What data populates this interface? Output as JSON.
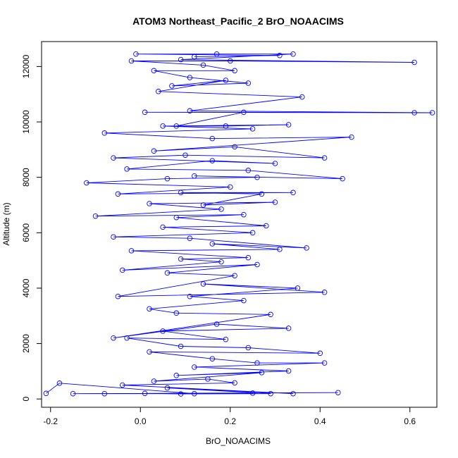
{
  "chart_data": {
    "type": "line",
    "title": "ATOM3 Northeast_Pacific_2 BrO_NOAACIMS",
    "xlabel": "BrO_NOAACIMS",
    "ylabel": "Altitude (m)",
    "xlim": [
      -0.22,
      0.66
    ],
    "ylim": [
      -300,
      12900
    ],
    "xticks": [
      -0.2,
      0.0,
      0.2,
      0.4,
      0.6
    ],
    "xtick_labels": [
      "-0.2",
      "0.0",
      "0.2",
      "0.4",
      "0.6"
    ],
    "yticks": [
      0,
      2000,
      4000,
      6000,
      8000,
      10000,
      12000
    ],
    "ytick_labels": [
      "0",
      "2000",
      "4000",
      "6000",
      "8000",
      "10000",
      "12000"
    ],
    "grid": false,
    "legend": "none",
    "series_color": "#0000ff",
    "marker": "open-circle",
    "series": [
      {
        "points": [
          [
            -0.21,
            200
          ],
          [
            -0.18,
            570
          ],
          [
            0.12,
            190
          ],
          [
            -0.15,
            190
          ],
          [
            0.25,
            210
          ],
          [
            -0.08,
            190
          ],
          [
            0.44,
            230
          ],
          [
            0.01,
            200
          ],
          [
            0.09,
            180
          ],
          [
            0.29,
            190
          ],
          [
            0.06,
            400
          ],
          [
            0.34,
            190
          ],
          [
            -0.04,
            500
          ],
          [
            0.21,
            580
          ],
          [
            0.15,
            720
          ],
          [
            0.03,
            640
          ],
          [
            0.27,
            950
          ],
          [
            0.08,
            850
          ],
          [
            0.33,
            1010
          ],
          [
            0.12,
            1150
          ],
          [
            0.41,
            1300
          ],
          [
            0.26,
            1300
          ],
          [
            0.16,
            1450
          ],
          [
            0.02,
            1700
          ],
          [
            0.4,
            1650
          ],
          [
            0.24,
            1850
          ],
          [
            0.09,
            1900
          ],
          [
            -0.03,
            2200
          ],
          [
            0.19,
            2150
          ],
          [
            0.05,
            2450
          ],
          [
            0.33,
            2550
          ],
          [
            0.17,
            2700
          ],
          [
            -0.06,
            2200
          ],
          [
            0.29,
            3050
          ],
          [
            0.08,
            3100
          ],
          [
            0.02,
            3250
          ],
          [
            0.23,
            3550
          ],
          [
            0.11,
            3700
          ],
          [
            0.35,
            4000
          ],
          [
            0.14,
            4150
          ],
          [
            0.41,
            3850
          ],
          [
            -0.05,
            3700
          ],
          [
            0.21,
            4450
          ],
          [
            0.06,
            4550
          ],
          [
            0.26,
            4850
          ],
          [
            -0.04,
            4650
          ],
          [
            0.18,
            4950
          ],
          [
            0.09,
            5050
          ],
          [
            0.24,
            5100
          ],
          [
            -0.02,
            5350
          ],
          [
            0.31,
            5400
          ],
          [
            0.16,
            5600
          ],
          [
            0.37,
            5450
          ],
          [
            0.11,
            5800
          ],
          [
            -0.06,
            5850
          ],
          [
            0.25,
            6000
          ],
          [
            0.05,
            6200
          ],
          [
            0.28,
            6250
          ],
          [
            0.08,
            6550
          ],
          [
            0.23,
            6650
          ],
          [
            -0.1,
            6600
          ],
          [
            0.18,
            6850
          ],
          [
            0.02,
            7050
          ],
          [
            0.3,
            7100
          ],
          [
            0.14,
            7000
          ],
          [
            0.27,
            7400
          ],
          [
            0.09,
            7450
          ],
          [
            0.34,
            7450
          ],
          [
            -0.05,
            7400
          ],
          [
            0.2,
            7650
          ],
          [
            -0.12,
            7800
          ],
          [
            0.06,
            7950
          ],
          [
            0.26,
            8000
          ],
          [
            0.12,
            8050
          ],
          [
            0.45,
            7950
          ],
          [
            0.24,
            8250
          ],
          [
            -0.03,
            8300
          ],
          [
            0.16,
            8600
          ],
          [
            0.3,
            8500
          ],
          [
            -0.06,
            8700
          ],
          [
            0.1,
            8800
          ],
          [
            0.41,
            8700
          ],
          [
            0.21,
            9100
          ],
          [
            0.03,
            8950
          ],
          [
            0.47,
            9450
          ],
          [
            0.16,
            9400
          ],
          [
            -0.08,
            9600
          ],
          [
            0.25,
            9750
          ],
          [
            0.05,
            9850
          ],
          [
            0.33,
            9900
          ],
          [
            0.19,
            9850
          ],
          [
            0.08,
            9850
          ],
          [
            0.23,
            10350
          ],
          [
            0.61,
            10330
          ],
          [
            0.01,
            10350
          ],
          [
            0.65,
            10330
          ],
          [
            0.11,
            10400
          ],
          [
            0.36,
            10900
          ],
          [
            0.04,
            11100
          ],
          [
            0.19,
            11500
          ],
          [
            0.07,
            11300
          ],
          [
            0.24,
            11400
          ],
          [
            0.11,
            11600
          ],
          [
            0.03,
            11850
          ],
          [
            0.21,
            11850
          ],
          [
            0.14,
            12050
          ],
          [
            -0.02,
            12200
          ],
          [
            0.2,
            12200
          ],
          [
            0.61,
            12150
          ],
          [
            0.09,
            12250
          ],
          [
            0.34,
            12450
          ],
          [
            0.17,
            12450
          ],
          [
            -0.01,
            12450
          ],
          [
            0.31,
            12400
          ],
          [
            0.12,
            12350
          ]
        ]
      }
    ]
  }
}
